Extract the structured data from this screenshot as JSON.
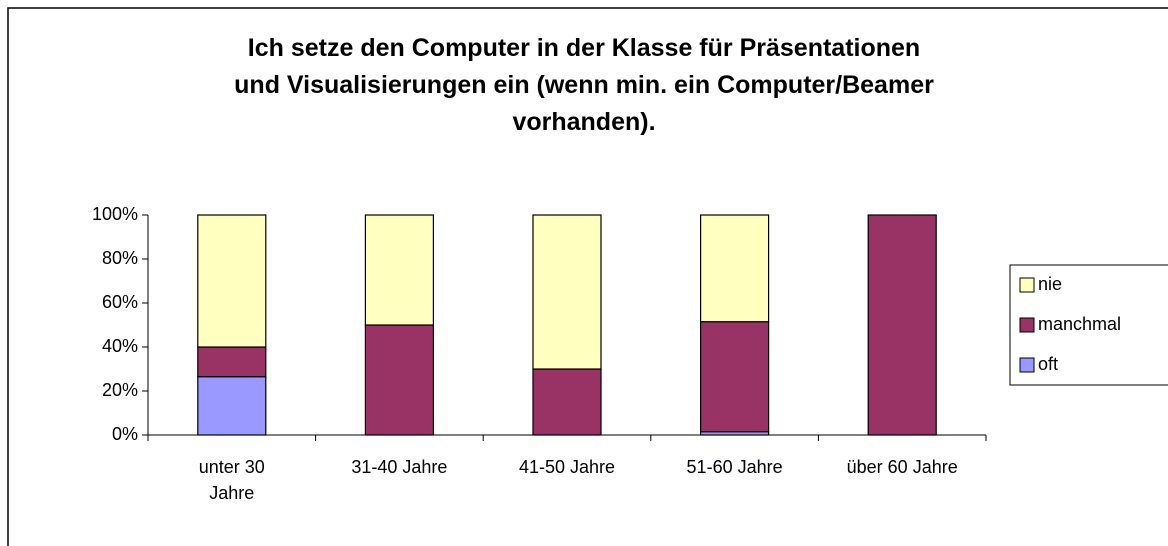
{
  "chart_data": {
    "type": "stacked_bar",
    "title": "Ich setze den Computer in der Klasse für Präsentationen\nund Visualisierungen ein (wenn min. ein Computer/Beamer\nvorhanden).",
    "categories": [
      "unter 30\nJahre",
      "31-40 Jahre",
      "41-50 Jahre",
      "51-60 Jahre",
      "über 60 Jahre"
    ],
    "series": [
      {
        "name": "oft",
        "color": "#9999ff",
        "values": [
          26.5,
          0,
          0,
          1.5,
          0
        ]
      },
      {
        "name": "manchmal",
        "color": "#993366",
        "values": [
          13.5,
          50,
          30,
          50,
          100
        ]
      },
      {
        "name": "nie",
        "color": "#ffffc0",
        "values": [
          60,
          50,
          70,
          48.5,
          0
        ]
      }
    ],
    "ylim": [
      0,
      100
    ],
    "yticks": [
      {
        "value": 0,
        "label": "0%"
      },
      {
        "value": 20,
        "label": "20%"
      },
      {
        "value": 40,
        "label": "40%"
      },
      {
        "value": 60,
        "label": "60%"
      },
      {
        "value": 80,
        "label": "80%"
      },
      {
        "value": 100,
        "label": "100%"
      }
    ],
    "legend": "right"
  }
}
